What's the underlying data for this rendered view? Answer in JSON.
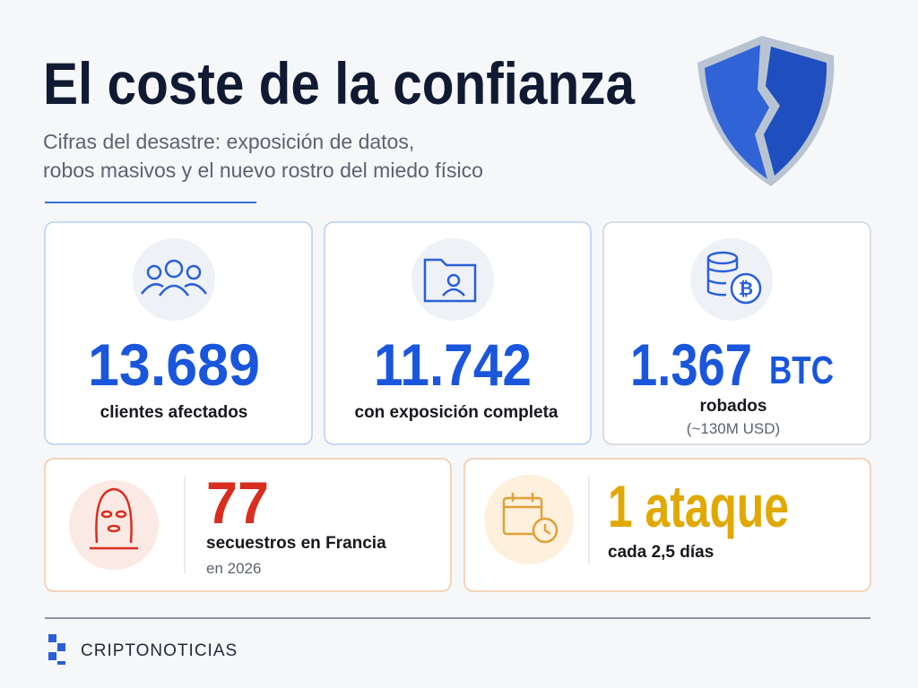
{
  "header": {
    "title": "El coste de la confianza",
    "subtitle_lines": [
      "Cifras del desastre: exposición de datos,",
      "robos masivos y el nuevo rostro del miedo físico"
    ]
  },
  "cards": [
    {
      "value": "13.689",
      "label": "clientes afectados"
    },
    {
      "value": "11.742",
      "label": "con exposición completa"
    },
    {
      "value": "1.367",
      "unit": "BTC",
      "label": "robados",
      "note": "(~130M USD)"
    },
    {
      "value": "77",
      "label": "secuestros en Francia",
      "note": "en 2026"
    },
    {
      "value": "1 ataque",
      "label": "cada 2,5 días"
    }
  ],
  "footer": {
    "brand": "CRIPTONOTICIAS"
  }
}
